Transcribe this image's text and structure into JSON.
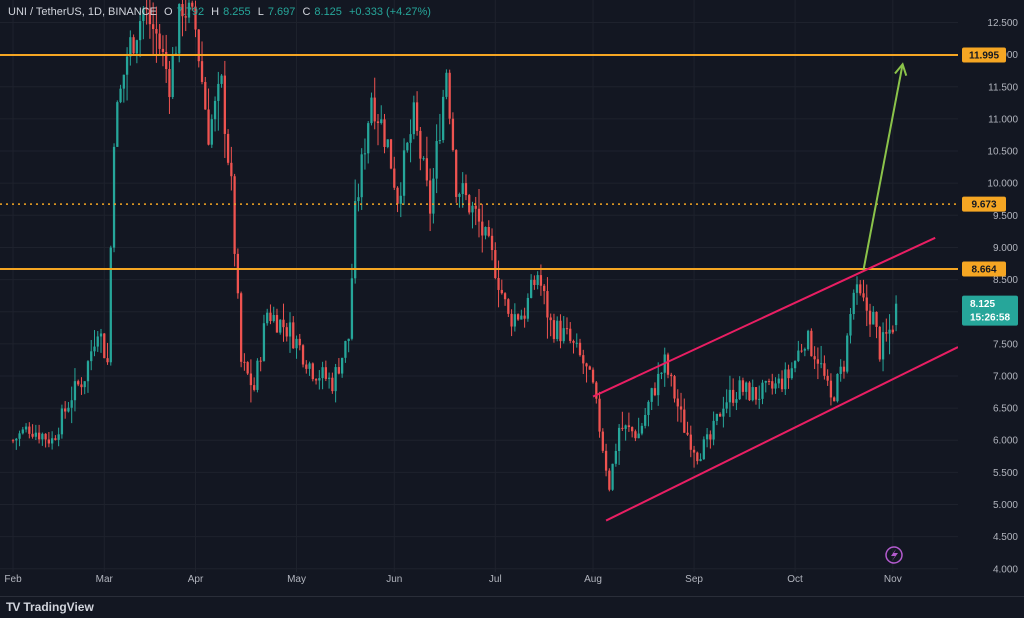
{
  "legend": {
    "symbol": "UNI / TetherUS, 1D, BINANCE",
    "o_label": "O",
    "o_value": "7.792",
    "h_label": "H",
    "h_value": "8.255",
    "l_label": "L",
    "l_value": "7.697",
    "c_label": "C",
    "c_value": "8.125",
    "change": "+0.333 (+4.27%)"
  },
  "brand": {
    "logo": "TV",
    "name": "TradingView"
  },
  "colors": {
    "background": "#131722",
    "up": "#26a69a",
    "down": "#ef5350",
    "level": "#f5a623",
    "channel": "#e91e63",
    "arrow": "#8bc34a",
    "grid": "#1e222d"
  },
  "chart_data": {
    "type": "candlestick",
    "y_ticks": [
      4.0,
      4.5,
      5.0,
      5.5,
      6.0,
      6.5,
      7.0,
      7.5,
      8.0,
      8.5,
      9.0,
      9.5,
      10.0,
      10.5,
      11.0,
      11.5,
      12.0,
      12.5
    ],
    "y_tick_labels": [
      "4.000",
      "4.500",
      "5.000",
      "5.500",
      "6.000",
      "6.500",
      "7.000",
      "7.500",
      "8.000",
      "8.500",
      "9.000",
      "9.500",
      "10.000",
      "10.500",
      "11.000",
      "11.500",
      "12.000",
      "12.500"
    ],
    "ylim": [
      3.95,
      12.85
    ],
    "x_labels": [
      "Feb",
      "Mar",
      "Apr",
      "May",
      "Jun",
      "Jul",
      "Aug",
      "Sep",
      "Oct",
      "Nov"
    ],
    "x_label_days": [
      0,
      28,
      56,
      87,
      117,
      148,
      178,
      209,
      240,
      270
    ],
    "xlim": [
      -4,
      290
    ],
    "horizontal_levels": [
      {
        "value": 11.995,
        "label": "11.995",
        "style": "solid"
      },
      {
        "value": 9.673,
        "label": "9.673",
        "style": "dotted"
      },
      {
        "value": 8.664,
        "label": "8.664",
        "style": "solid"
      }
    ],
    "last_price": {
      "value": 8.125,
      "label": "8.125",
      "countdown": "15:26:58"
    },
    "channel_upper": [
      [
        178,
        6.68
      ],
      [
        283,
        9.15
      ]
    ],
    "channel_lower": [
      [
        182,
        4.75
      ],
      [
        290,
        7.45
      ]
    ],
    "projection_arrow": [
      [
        261,
        8.65
      ],
      [
        273,
        11.85
      ]
    ],
    "anchors": [
      [
        0,
        6.0
      ],
      [
        5,
        6.2
      ],
      [
        12,
        6.0
      ],
      [
        18,
        6.7
      ],
      [
        22,
        7.0
      ],
      [
        26,
        7.8
      ],
      [
        29,
        7.2
      ],
      [
        31,
        10.8
      ],
      [
        35,
        12.0
      ],
      [
        40,
        12.7
      ],
      [
        44,
        12.3
      ],
      [
        48,
        11.6
      ],
      [
        52,
        12.8
      ],
      [
        56,
        12.4
      ],
      [
        60,
        10.8
      ],
      [
        64,
        11.5
      ],
      [
        67,
        9.9
      ],
      [
        70,
        7.2
      ],
      [
        74,
        6.8
      ],
      [
        78,
        8.0
      ],
      [
        85,
        7.7
      ],
      [
        92,
        7.1
      ],
      [
        98,
        6.9
      ],
      [
        103,
        7.6
      ],
      [
        105,
        9.5
      ],
      [
        110,
        11.4
      ],
      [
        115,
        10.6
      ],
      [
        118,
        9.8
      ],
      [
        123,
        11.0
      ],
      [
        128,
        9.6
      ],
      [
        133,
        11.8
      ],
      [
        136,
        10.0
      ],
      [
        142,
        9.5
      ],
      [
        148,
        8.7
      ],
      [
        152,
        7.9
      ],
      [
        157,
        8.0
      ],
      [
        161,
        8.6
      ],
      [
        165,
        7.8
      ],
      [
        170,
        7.6
      ],
      [
        175,
        7.2
      ],
      [
        178,
        6.8
      ],
      [
        181,
        5.9
      ],
      [
        183,
        5.3
      ],
      [
        186,
        6.2
      ],
      [
        192,
        6.1
      ],
      [
        196,
        6.7
      ],
      [
        200,
        7.2
      ],
      [
        206,
        6.2
      ],
      [
        210,
        5.8
      ],
      [
        214,
        6.0
      ],
      [
        218,
        6.6
      ],
      [
        223,
        6.8
      ],
      [
        228,
        6.7
      ],
      [
        233,
        6.8
      ],
      [
        238,
        7.0
      ],
      [
        243,
        7.6
      ],
      [
        247,
        7.3
      ],
      [
        251,
        6.6
      ],
      [
        255,
        7.2
      ],
      [
        258,
        8.3
      ],
      [
        261,
        8.1
      ],
      [
        264,
        7.9
      ],
      [
        266,
        7.4
      ],
      [
        268,
        7.6
      ],
      [
        270,
        7.8
      ]
    ],
    "last_candle": {
      "day": 271,
      "o": 7.792,
      "h": 8.255,
      "l": 7.697,
      "c": 8.125
    }
  }
}
